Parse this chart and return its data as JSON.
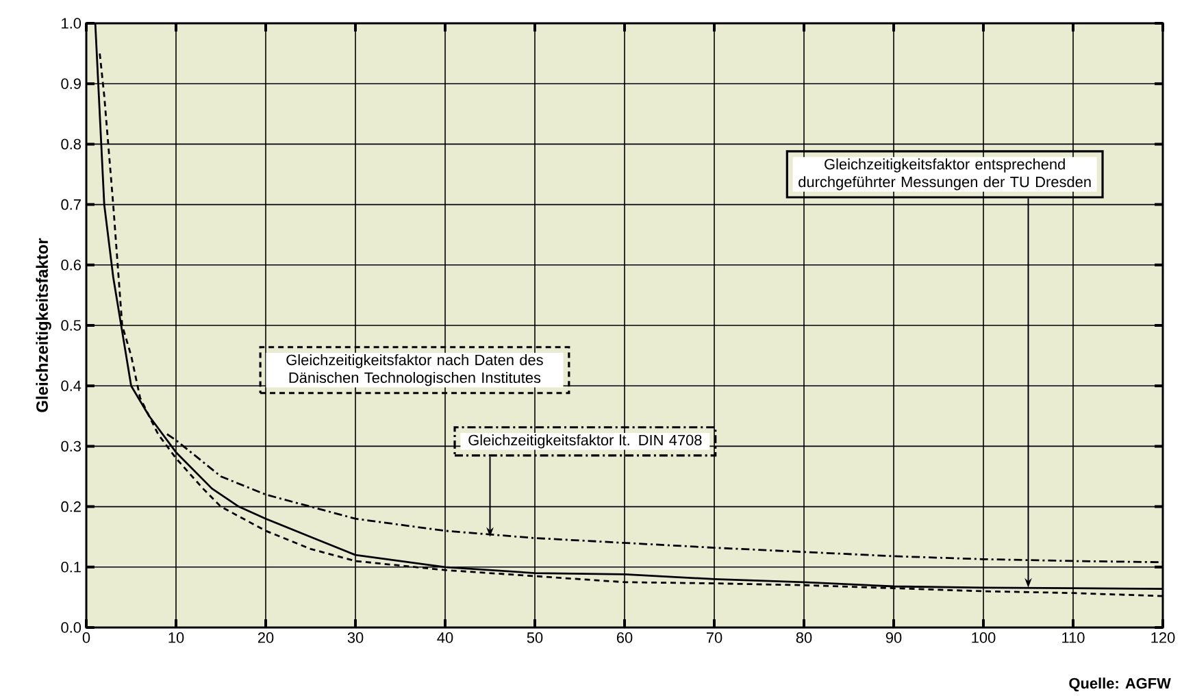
{
  "chart_data": {
    "type": "line",
    "ylabel": "Gleichzeitigkeitsfaktor",
    "xlim": [
      0,
      120
    ],
    "xticks": [
      0,
      10,
      20,
      30,
      40,
      50,
      60,
      70,
      80,
      90,
      100,
      110,
      120
    ],
    "ylim": [
      0,
      1.0
    ],
    "yticks": [
      {
        "value": 0,
        "label": "0.0"
      },
      0.1,
      0.2,
      0.3,
      0.4,
      0.5,
      0.6,
      0.7,
      0.8,
      0.9,
      {
        "value": 1.0,
        "label": "1.0"
      }
    ],
    "grid": true,
    "marker": "none",
    "series": [
      {
        "color": "#000000",
        "line_style": "solid",
        "x": [
          1,
          2,
          3,
          5,
          7,
          10,
          14,
          17,
          20,
          25,
          30,
          35,
          40,
          50,
          60,
          70,
          80,
          90,
          100,
          110,
          120
        ],
        "values": [
          1.0,
          0.7,
          0.58,
          0.4,
          0.35,
          0.29,
          0.23,
          0.2,
          0.18,
          0.15,
          0.12,
          0.11,
          0.1,
          0.09,
          0.088,
          0.08,
          0.075,
          0.068,
          0.066,
          0.065,
          0.064
        ]
      },
      {
        "color": "#000000",
        "line_style": "dashed",
        "x": [
          1.5,
          2,
          3,
          4,
          5,
          6,
          8,
          10,
          13,
          15,
          20,
          25,
          30,
          40,
          50,
          60,
          70,
          80,
          90,
          100,
          110,
          120
        ],
        "values": [
          0.95,
          0.88,
          0.7,
          0.5,
          0.45,
          0.38,
          0.32,
          0.28,
          0.23,
          0.2,
          0.16,
          0.13,
          0.11,
          0.095,
          0.085,
          0.075,
          0.073,
          0.07,
          0.065,
          0.06,
          0.057,
          0.052
        ]
      },
      {
        "color": "#000000",
        "line_style": "dashdot",
        "x": [
          9,
          10,
          15,
          20,
          25,
          30,
          40,
          50,
          60,
          70,
          80,
          90,
          100,
          110,
          120
        ],
        "values": [
          0.32,
          0.31,
          0.25,
          0.22,
          0.2,
          0.18,
          0.16,
          0.148,
          0.14,
          0.132,
          0.125,
          0.118,
          0.113,
          0.11,
          0.108
        ]
      }
    ],
    "annotations": [
      "Gleichzeitigkeitsfaktor nach Daten des Dänischen Technologischen Institutes",
      {
        "text": "Gleichzeitigkeitsfaktor entsprechend durchgeführter Messungen der TU Dresden",
        "x": 105,
        "y": 0.066
      },
      {
        "text": "Gleichzeitigkeitsfaktor lt. DIN 4708",
        "x": 45,
        "y": 0.15
      },
      "Quelle: AGFW"
    ]
  }
}
